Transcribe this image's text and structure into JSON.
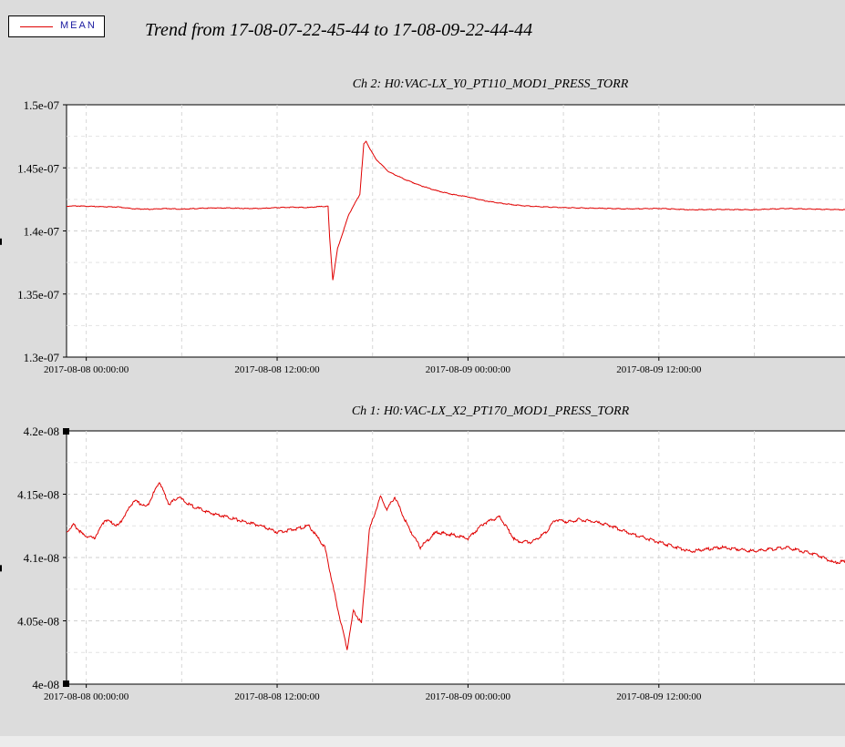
{
  "legend": {
    "label": "MEAN",
    "color": "#e00000"
  },
  "title": "Trend from 17-08-07-22-45-44 to 17-08-09-22-44-44",
  "chart_data": [
    {
      "type": "line",
      "title": "Ch 2: H0:VAC-LX_Y0_PT110_MOD1_PRESS_TORR",
      "series": [
        {
          "name": "MEAN",
          "color": "#e00000",
          "x": [
            -1.24,
            -1.0,
            0,
            1,
            2,
            3,
            4,
            5,
            6,
            7,
            8,
            9,
            10,
            11,
            12,
            13,
            14,
            14.5,
            15.2,
            15.3,
            15.5,
            15.8,
            16.5,
            17.2,
            17.45,
            17.6,
            17.8,
            18.2,
            19,
            20,
            21,
            22,
            23,
            24,
            25,
            26,
            27,
            28,
            30,
            32,
            34,
            36,
            38,
            40,
            42,
            44,
            46,
            47.76
          ],
          "y": [
            1.4195e-07,
            1.4198e-07,
            1.4196e-07,
            1.4192e-07,
            1.419e-07,
            1.4175e-07,
            1.4172e-07,
            1.4178e-07,
            1.4172e-07,
            1.4178e-07,
            1.4182e-07,
            1.4182e-07,
            1.4178e-07,
            1.4178e-07,
            1.4185e-07,
            1.4188e-07,
            1.4185e-07,
            1.4192e-07,
            1.4195e-07,
            1.395e-07,
            1.361e-07,
            1.386e-07,
            1.413e-07,
            1.429e-07,
            1.469e-07,
            1.471e-07,
            1.466e-07,
            1.457e-07,
            1.447e-07,
            1.441e-07,
            1.436e-07,
            1.432e-07,
            1.429e-07,
            1.427e-07,
            1.424e-07,
            1.422e-07,
            1.4205e-07,
            1.4195e-07,
            1.4185e-07,
            1.418e-07,
            1.4175e-07,
            1.4178e-07,
            1.4168e-07,
            1.417e-07,
            1.4168e-07,
            1.4178e-07,
            1.4172e-07,
            1.4168e-07
          ]
        }
      ],
      "xticks": [
        "2017-08-08 00:00:00",
        "2017-08-08 12:00:00",
        "2017-08-09 00:00:00",
        "2017-08-09 12:00:00"
      ],
      "yticks": [
        "1.3e-07",
        "1.35e-07",
        "1.4e-07",
        "1.45e-07",
        "1.5e-07"
      ],
      "xlim": [
        -1.24,
        47.76
      ],
      "ylim": [
        1.3e-07,
        1.5e-07
      ],
      "grid": true
    },
    {
      "type": "line",
      "title": "Ch 1: H0:VAC-LX_X2_PT170_MOD1_PRESS_TORR",
      "series": [
        {
          "name": "MEAN",
          "color": "#e00000",
          "x": [
            -1.24,
            -0.8,
            -0.2,
            0.5,
            1.2,
            2,
            3,
            3.8,
            4.6,
            5.2,
            5.8,
            6.3,
            6.6,
            7.2,
            7.8,
            8.6,
            10,
            11,
            12,
            13,
            14,
            15,
            15.8,
            16.4,
            16.8,
            17.3,
            17.8,
            18.5,
            18.9,
            19.4,
            20.2,
            21,
            22,
            23,
            24,
            25,
            26,
            27,
            28,
            28.9,
            29.5,
            30.3,
            31,
            32,
            33,
            34,
            36,
            38,
            40,
            42,
            44,
            46,
            47,
            47.76
          ],
          "y": [
            4.12e-08,
            4.126e-08,
            4.118e-08,
            4.115e-08,
            4.13e-08,
            4.125e-08,
            4.145e-08,
            4.14e-08,
            4.16e-08,
            4.142e-08,
            4.148e-08,
            4.143e-08,
            4.141e-08,
            4.138e-08,
            4.135e-08,
            4.133e-08,
            4.128e-08,
            4.125e-08,
            4.12e-08,
            4.122e-08,
            4.125e-08,
            4.108e-08,
            4.06e-08,
            4.028e-08,
            4.058e-08,
            4.048e-08,
            4.122e-08,
            4.148e-08,
            4.138e-08,
            4.148e-08,
            4.125e-08,
            4.108e-08,
            4.12e-08,
            4.118e-08,
            4.115e-08,
            4.127e-08,
            4.132e-08,
            4.113e-08,
            4.112e-08,
            4.12e-08,
            4.13e-08,
            4.128e-08,
            4.13e-08,
            4.128e-08,
            4.125e-08,
            4.12e-08,
            4.112e-08,
            4.105e-08,
            4.108e-08,
            4.105e-08,
            4.108e-08,
            4.102e-08,
            4.096e-08,
            4.097e-08
          ]
        }
      ],
      "xticks": [
        "2017-08-08 00:00:00",
        "2017-08-08 12:00:00",
        "2017-08-09 00:00:00",
        "2017-08-09 12:00:00"
      ],
      "yticks": [
        "4e-08",
        "4.05e-08",
        "4.1e-08",
        "4.15e-08",
        "4.2e-08"
      ],
      "xlim": [
        -1.24,
        47.76
      ],
      "ylim": [
        4e-08,
        4.2e-08
      ],
      "grid": true
    }
  ]
}
